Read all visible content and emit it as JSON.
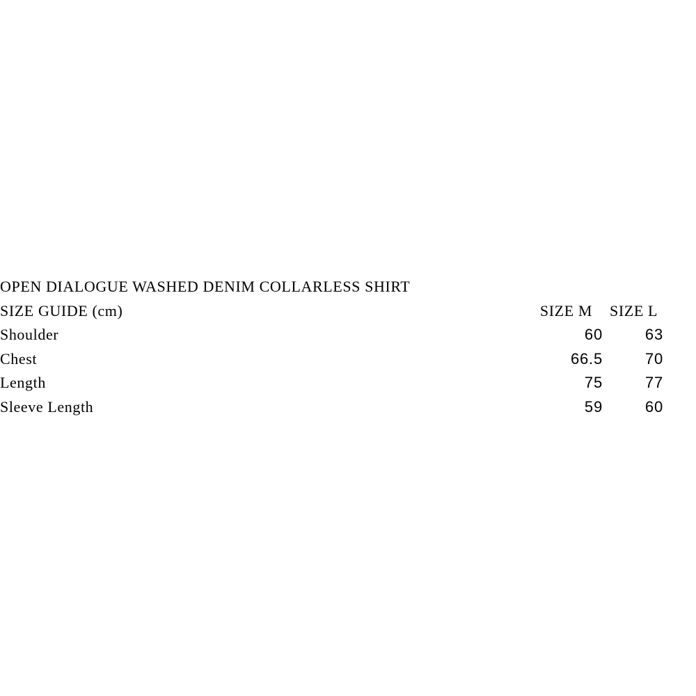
{
  "colors": {
    "background": "#ffffff",
    "text": "#000000"
  },
  "product": {
    "title": "OPEN DIALOGUE WASHED DENIM COLLARLESS SHIRT"
  },
  "size_guide": {
    "label": "SIZE GUIDE (cm)",
    "columns": [
      "SIZE M",
      "SIZE L"
    ],
    "rows": [
      {
        "label": "Shoulder",
        "m": "60",
        "l": "63"
      },
      {
        "label": "Chest",
        "m": "66.5",
        "l": "70"
      },
      {
        "label": "Length",
        "m": "75",
        "l": "77"
      },
      {
        "label": "Sleeve Length",
        "m": "59",
        "l": "60"
      }
    ]
  }
}
